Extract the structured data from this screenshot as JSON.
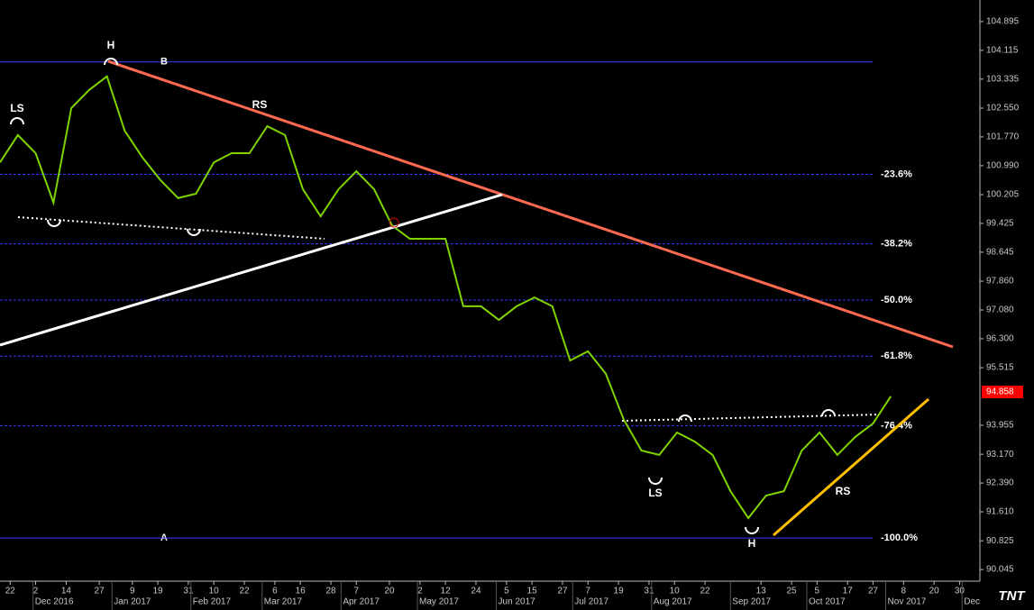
{
  "chart_data": {
    "type": "line",
    "series": [
      {
        "name": "Price",
        "color": "#7fd400",
        "x": [
          "2016-11-18",
          "2016-11-25",
          "2016-12-02",
          "2016-12-09",
          "2016-12-16",
          "2016-12-23",
          "2016-12-30",
          "2017-01-06",
          "2017-01-13",
          "2017-01-20",
          "2017-01-27",
          "2017-02-03",
          "2017-02-10",
          "2017-02-17",
          "2017-02-24",
          "2017-03-03",
          "2017-03-10",
          "2017-03-17",
          "2017-03-24",
          "2017-03-31",
          "2017-04-07",
          "2017-04-14",
          "2017-04-21",
          "2017-04-28",
          "2017-05-05",
          "2017-05-12",
          "2017-05-19",
          "2017-05-26",
          "2017-06-02",
          "2017-06-09",
          "2017-06-16",
          "2017-06-23",
          "2017-06-30",
          "2017-07-07",
          "2017-07-14",
          "2017-07-21",
          "2017-07-28",
          "2017-08-04",
          "2017-08-11",
          "2017-08-18",
          "2017-08-25",
          "2017-09-01",
          "2017-09-08",
          "2017-09-15",
          "2017-09-22",
          "2017-09-29",
          "2017-10-06",
          "2017-10-13",
          "2017-10-20",
          "2017-10-27",
          "2017-11-03"
        ],
        "values": [
          101.08,
          101.82,
          101.33,
          99.99,
          102.55,
          103.04,
          103.41,
          101.94,
          101.21,
          100.6,
          100.11,
          100.23,
          101.08,
          101.33,
          101.33,
          102.06,
          101.82,
          100.35,
          99.62,
          100.35,
          100.84,
          100.35,
          99.37,
          99.01,
          99.01,
          99.01,
          97.18,
          97.18,
          96.81,
          97.18,
          97.42,
          97.18,
          95.71,
          95.96,
          95.35,
          94.12,
          93.27,
          93.15,
          93.76,
          93.51,
          93.15,
          92.17,
          91.44,
          92.05,
          92.17,
          93.27,
          93.76,
          93.15,
          93.64,
          94.0,
          94.74
        ]
      }
    ],
    "xlim": [
      "2016-11-18",
      "2017-12-08"
    ],
    "ylim": [
      89.73,
      105.48
    ],
    "yticks": [
      104.895,
      104.115,
      103.335,
      {
        "value": 102.55,
        "label": "102.550"
      },
      {
        "value": 101.77,
        "label": "101.770"
      },
      {
        "value": 100.99,
        "label": "100.990"
      },
      100.205,
      99.425,
      98.645,
      {
        "value": 97.86,
        "label": "97.860"
      },
      {
        "value": 97.08,
        "label": "97.080"
      },
      {
        "value": 96.3,
        "label": "96.300"
      },
      95.515,
      93.955,
      {
        "value": 93.17,
        "label": "93.170"
      },
      {
        "value": 92.39,
        "label": "92.390"
      },
      {
        "value": 91.61,
        "label": "91.610"
      },
      90.825,
      90.045
    ],
    "xticks": [
      {
        "value": "2016-11-22",
        "label": "22"
      },
      {
        "value": "2016-12-02",
        "label": "2"
      },
      {
        "value": "2016-12-14",
        "label": "14"
      },
      {
        "value": "2016-12-27",
        "label": "27"
      },
      {
        "value": "2017-01-09",
        "label": "9"
      },
      {
        "value": "2017-01-19",
        "label": "19"
      },
      {
        "value": "2017-01-31",
        "label": "31"
      },
      {
        "value": "2017-02-10",
        "label": "10"
      },
      {
        "value": "2017-02-22",
        "label": "22"
      },
      {
        "value": "2017-03-06",
        "label": "6"
      },
      {
        "value": "2017-03-16",
        "label": "16"
      },
      {
        "value": "2017-03-28",
        "label": "28"
      },
      {
        "value": "2017-04-07",
        "label": "7"
      },
      {
        "value": "2017-04-20",
        "label": "20"
      },
      {
        "value": "2017-05-02",
        "label": "2"
      },
      {
        "value": "2017-05-12",
        "label": "12"
      },
      {
        "value": "2017-05-24",
        "label": "24"
      },
      {
        "value": "2017-06-05",
        "label": "5"
      },
      {
        "value": "2017-06-15",
        "label": "15"
      },
      {
        "value": "2017-06-27",
        "label": "27"
      },
      {
        "value": "2017-07-07",
        "label": "7"
      },
      {
        "value": "2017-07-19",
        "label": "19"
      },
      {
        "value": "2017-07-31",
        "label": "31"
      },
      {
        "value": "2017-08-10",
        "label": "10"
      },
      {
        "value": "2017-08-22",
        "label": "22"
      },
      {
        "value": "2017-09-13",
        "label": "13"
      },
      {
        "value": "2017-09-25",
        "label": "25"
      },
      {
        "value": "2017-10-05",
        "label": "5"
      },
      {
        "value": "2017-10-17",
        "label": "17"
      },
      {
        "value": "2017-10-27",
        "label": "27"
      },
      {
        "value": "2017-11-08",
        "label": "8"
      },
      {
        "value": "2017-11-20",
        "label": "20"
      },
      {
        "value": "2017-11-30",
        "label": "30"
      }
    ],
    "month_ticks": [
      {
        "value": "2016-12-01",
        "label": "Dec 2016"
      },
      {
        "value": "2017-01-01",
        "label": "Jan 2017"
      },
      {
        "value": "2017-02-01",
        "label": "Feb 2017"
      },
      {
        "value": "2017-03-01",
        "label": "Mar 2017"
      },
      {
        "value": "2017-04-01",
        "label": "Apr 2017"
      },
      {
        "value": "2017-05-01",
        "label": "May 2017"
      },
      {
        "value": "2017-06-01",
        "label": "Jun 2017"
      },
      {
        "value": "2017-07-01",
        "label": "Jul 2017"
      },
      {
        "value": "2017-08-01",
        "label": "Aug 2017"
      },
      {
        "value": "2017-09-01",
        "label": "Sep 2017"
      },
      {
        "value": "2017-10-01",
        "label": "Oct 2017"
      },
      {
        "value": "2017-11-01",
        "label": "Nov 2017"
      },
      {
        "value": "2017-12-01",
        "label": "Dec"
      }
    ],
    "last_price": {
      "value": 94.858,
      "color": "#ff0000"
    },
    "retracement": {
      "high": 103.8,
      "low": 90.9,
      "high_label": "B",
      "low_label": "A",
      "color": "#3a3aff",
      "levels": [
        {
          "value": -23.6,
          "label": "-23.6%"
        },
        {
          "value": -38.2,
          "label": "-38.2%"
        },
        {
          "value": -50,
          "label": "-50.0%"
        },
        {
          "value": -61.8,
          "label": "-61.8%"
        },
        {
          "value": -76.4,
          "label": "-76.4%"
        },
        {
          "value": -100,
          "label": "-100.0%"
        }
      ]
    },
    "annotations": [
      "H",
      "LS",
      "RS",
      "LS",
      "H",
      "RS"
    ],
    "logo": "TNT"
  }
}
